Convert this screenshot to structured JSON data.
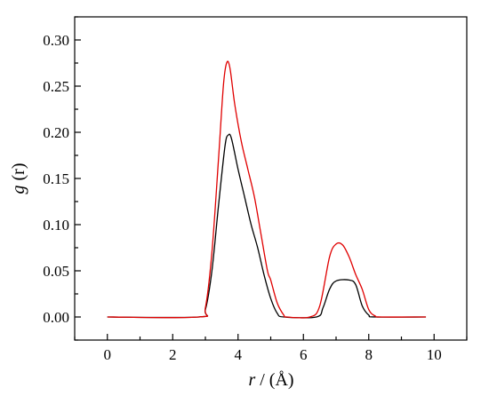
{
  "chart_data": {
    "type": "line",
    "title": "",
    "xlabel": {
      "var": "r",
      "unit": " / (Å)"
    },
    "ylabel": {
      "var": "g",
      "unit": " (r)"
    },
    "xlim": [
      -1,
      11
    ],
    "ylim": [
      -0.025,
      0.325
    ],
    "xticks": [
      0,
      2,
      4,
      6,
      8,
      10
    ],
    "yticks": [
      0.0,
      0.05,
      0.1,
      0.15,
      0.2,
      0.25,
      0.3
    ],
    "ytick_labels": [
      "0.00",
      "0.05",
      "0.10",
      "0.15",
      "0.20",
      "0.25",
      "0.30"
    ],
    "grid": false,
    "legend": "none",
    "series": [
      {
        "color": "#000000",
        "points": [
          [
            0,
            0
          ],
          [
            2.8,
            0
          ],
          [
            3.0,
            0.008
          ],
          [
            3.2,
            0.05
          ],
          [
            3.4,
            0.12
          ],
          [
            3.6,
            0.185
          ],
          [
            3.7,
            0.197
          ],
          [
            3.8,
            0.193
          ],
          [
            4.0,
            0.16
          ],
          [
            4.2,
            0.13
          ],
          [
            4.4,
            0.1
          ],
          [
            4.6,
            0.075
          ],
          [
            4.8,
            0.045
          ],
          [
            5.0,
            0.02
          ],
          [
            5.2,
            0.004
          ],
          [
            5.4,
            0
          ],
          [
            6.4,
            0
          ],
          [
            6.6,
            0.01
          ],
          [
            6.8,
            0.03
          ],
          [
            7.0,
            0.039
          ],
          [
            7.4,
            0.04
          ],
          [
            7.6,
            0.035
          ],
          [
            7.8,
            0.012
          ],
          [
            8.0,
            0.002
          ],
          [
            8.2,
            0
          ],
          [
            9.75,
            0
          ]
        ]
      },
      {
        "color": "#e00000",
        "points": [
          [
            0,
            0
          ],
          [
            2.8,
            0
          ],
          [
            3.0,
            0.01
          ],
          [
            3.2,
            0.07
          ],
          [
            3.4,
            0.17
          ],
          [
            3.55,
            0.25
          ],
          [
            3.65,
            0.275
          ],
          [
            3.75,
            0.27
          ],
          [
            3.9,
            0.23
          ],
          [
            4.1,
            0.19
          ],
          [
            4.3,
            0.16
          ],
          [
            4.5,
            0.13
          ],
          [
            4.7,
            0.09
          ],
          [
            4.9,
            0.05
          ],
          [
            5.0,
            0.04
          ],
          [
            5.2,
            0.015
          ],
          [
            5.4,
            0.002
          ],
          [
            5.5,
            0
          ],
          [
            6.2,
            0
          ],
          [
            6.5,
            0.012
          ],
          [
            6.8,
            0.065
          ],
          [
            7.0,
            0.079
          ],
          [
            7.2,
            0.078
          ],
          [
            7.4,
            0.065
          ],
          [
            7.6,
            0.046
          ],
          [
            7.8,
            0.03
          ],
          [
            8.0,
            0.008
          ],
          [
            8.2,
            0.001
          ],
          [
            8.4,
            0
          ],
          [
            9.75,
            0
          ]
        ]
      }
    ]
  }
}
